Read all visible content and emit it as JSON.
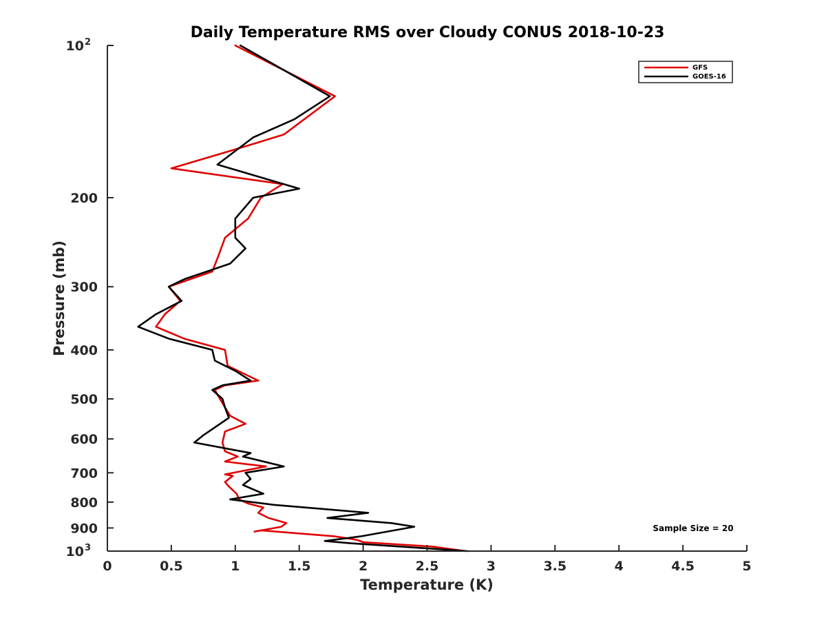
{
  "chart_data": {
    "type": "line",
    "title": "Daily Temperature RMS over Cloudy CONUS 2018-10-23",
    "xlabel": "Temperature (K)",
    "ylabel": "Pressure (mb)",
    "xlim": [
      0,
      5
    ],
    "ylim": [
      100,
      1000
    ],
    "y_scale": "log",
    "y_reversed": true,
    "x_ticks": [
      0,
      0.5,
      1,
      1.5,
      2,
      2.5,
      3,
      3.5,
      4,
      4.5,
      5
    ],
    "x_tick_labels": [
      "0",
      "0.5",
      "1",
      "1.5",
      "2",
      "2.5",
      "3",
      "3.5",
      "4",
      "4.5",
      "5"
    ],
    "y_ticks": [
      {
        "value": 100,
        "base": "10",
        "exp": "2"
      },
      {
        "value": 200,
        "label": "200"
      },
      {
        "value": 300,
        "label": "300"
      },
      {
        "value": 400,
        "label": "400"
      },
      {
        "value": 500,
        "label": "500"
      },
      {
        "value": 600,
        "label": "600"
      },
      {
        "value": 700,
        "label": "700"
      },
      {
        "value": 800,
        "label": "800"
      },
      {
        "value": 900,
        "label": "900"
      },
      {
        "value": 1000,
        "base": "10",
        "exp": "3"
      }
    ],
    "grid": false,
    "legend_position": "top-right",
    "annotation": "Sample Size = 20",
    "series": [
      {
        "name": "GFS",
        "color": "#e00000",
        "points": [
          [
            1.0,
            100
          ],
          [
            1.78,
            126
          ],
          [
            1.38,
            150
          ],
          [
            1.02,
            160
          ],
          [
            0.5,
            175
          ],
          [
            1.37,
            188
          ],
          [
            1.2,
            200
          ],
          [
            1.1,
            220
          ],
          [
            0.92,
            240
          ],
          [
            0.87,
            260
          ],
          [
            0.82,
            280
          ],
          [
            0.48,
            300
          ],
          [
            0.57,
            320
          ],
          [
            0.45,
            340
          ],
          [
            0.38,
            360
          ],
          [
            0.6,
            380
          ],
          [
            0.92,
            400
          ],
          [
            0.94,
            430
          ],
          [
            1.18,
            460
          ],
          [
            0.92,
            470
          ],
          [
            0.84,
            480
          ],
          [
            0.88,
            500
          ],
          [
            0.92,
            520
          ],
          [
            0.96,
            540
          ],
          [
            1.08,
            560
          ],
          [
            0.92,
            580
          ],
          [
            0.9,
            610
          ],
          [
            0.92,
            635
          ],
          [
            1.02,
            650
          ],
          [
            0.92,
            665
          ],
          [
            1.24,
            680
          ],
          [
            0.92,
            705
          ],
          [
            0.98,
            710
          ],
          [
            0.92,
            730
          ],
          [
            0.95,
            745
          ],
          [
            1.01,
            770
          ],
          [
            1.03,
            790
          ],
          [
            1.1,
            805
          ],
          [
            1.22,
            820
          ],
          [
            1.18,
            840
          ],
          [
            1.26,
            860
          ],
          [
            1.4,
            880
          ],
          [
            1.36,
            895
          ],
          [
            1.15,
            915
          ],
          [
            1.2,
            910
          ],
          [
            1.78,
            935
          ],
          [
            1.95,
            950
          ],
          [
            2.0,
            960
          ],
          [
            2.55,
            980
          ],
          [
            2.8,
            1000
          ]
        ]
      },
      {
        "name": "GOES-16",
        "color": "#000000",
        "points": [
          [
            1.04,
            100
          ],
          [
            1.74,
            126
          ],
          [
            1.46,
            140
          ],
          [
            1.14,
            152
          ],
          [
            0.86,
            172
          ],
          [
            1.5,
            192
          ],
          [
            1.14,
            200
          ],
          [
            1.0,
            220
          ],
          [
            1.0,
            240
          ],
          [
            1.08,
            252
          ],
          [
            0.96,
            270
          ],
          [
            0.6,
            290
          ],
          [
            0.48,
            300
          ],
          [
            0.58,
            320
          ],
          [
            0.38,
            340
          ],
          [
            0.24,
            360
          ],
          [
            0.48,
            380
          ],
          [
            0.82,
            400
          ],
          [
            0.84,
            420
          ],
          [
            1.0,
            440
          ],
          [
            1.12,
            460
          ],
          [
            0.9,
            470
          ],
          [
            0.82,
            480
          ],
          [
            0.9,
            500
          ],
          [
            0.92,
            520
          ],
          [
            0.95,
            545
          ],
          [
            0.75,
            590
          ],
          [
            0.68,
            610
          ],
          [
            1.12,
            640
          ],
          [
            1.06,
            650
          ],
          [
            1.38,
            680
          ],
          [
            1.08,
            700
          ],
          [
            1.12,
            720
          ],
          [
            1.06,
            740
          ],
          [
            1.22,
            770
          ],
          [
            0.96,
            790
          ],
          [
            1.3,
            810
          ],
          [
            2.04,
            840
          ],
          [
            1.72,
            860
          ],
          [
            2.22,
            880
          ],
          [
            2.4,
            895
          ],
          [
            1.98,
            935
          ],
          [
            1.7,
            955
          ],
          [
            1.9,
            965
          ],
          [
            2.82,
            1000
          ]
        ]
      }
    ]
  }
}
